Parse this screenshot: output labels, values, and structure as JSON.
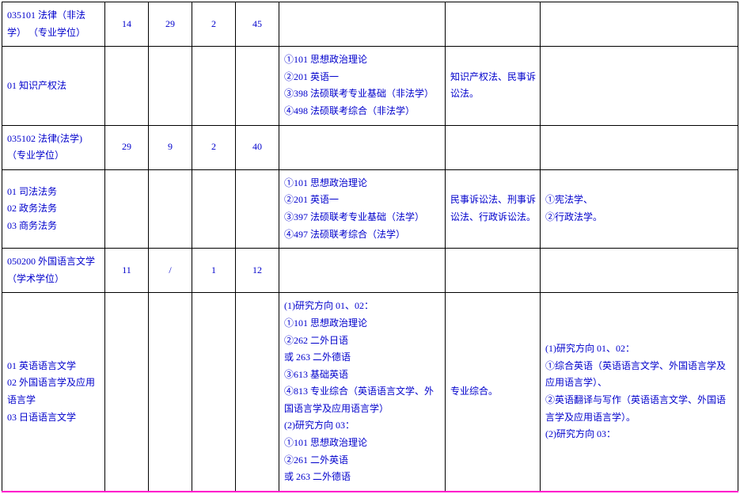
{
  "rows": {
    "header1": {
      "code": "035101  法律（非法学） （专业学位）",
      "n1": "14",
      "n2": "29",
      "n3": "2",
      "n4": "45"
    },
    "detail1": {
      "code": "01 知识产权法",
      "exam": "①101 思想政治理论\n②201 英语一\n③398 法硕联考专业基础（非法学）\n④498 法硕联考综合（非法学）",
      "ref": "知识产权法、民事诉讼法。",
      "note": ""
    },
    "header2": {
      "code": "035102 法律(法学) （专业学位）",
      "n1": "29",
      "n2": "9",
      "n3": "2",
      "n4": "40"
    },
    "detail2": {
      "code": "01 司法法务\n02 政务法务\n03 商务法务",
      "exam": "①101 思想政治理论\n②201 英语一\n③397 法硕联考专业基础（法学）\n④497 法硕联考综合（法学）",
      "ref": "民事诉讼法、刑事诉讼法、行政诉讼法。",
      "note": "①宪法学、\n②行政法学。"
    },
    "header3": {
      "code": "050200 外国语言文学（学术学位）",
      "n1": "11",
      "n2": "/",
      "n3": "1",
      "n4": "12"
    },
    "detail3": {
      "code": "01 英语语言文学\n02 外国语言学及应用语言学\n03 日语语言文学",
      "exam": "(1)研究方向 01、02：\n①101 思想政治理论\n②262 二外日语\n    或 263 二外德语\n③613 基础英语\n④813 专业综合（英语语言文学、外国语言学及应用语言学）\n(2)研究方向 03：\n①101 思想政治理论\n②261 二外英语\n    或 263 二外德语",
      "ref": "专业综合。",
      "note": "(1)研究方向 01、02：\n①综合英语（英语语言文学、外国语言学及应用语言学）、\n②英语翻译与写作（英语语言文学、外国语言学及应用语言学）。\n(2)研究方向 03："
    }
  }
}
